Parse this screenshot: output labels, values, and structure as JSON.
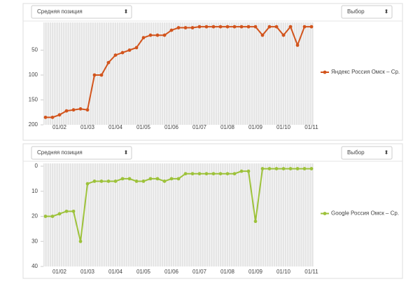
{
  "controls": [
    {
      "select": "Средняя позиция",
      "button": "Выбор"
    },
    {
      "select": "Средняя позиция",
      "button": "Выбор"
    }
  ],
  "chart_data": [
    {
      "type": "line",
      "reversed": true,
      "ylim": [
        0,
        200
      ],
      "yticks": [
        50,
        100,
        150,
        200
      ],
      "categories": [
        null,
        null,
        "01/02",
        null,
        null,
        null,
        "01/03",
        null,
        null,
        null,
        "01/04",
        null,
        null,
        null,
        "01/05",
        null,
        null,
        null,
        "01/06",
        null,
        null,
        null,
        "01/07",
        null,
        null,
        null,
        "01/08",
        null,
        null,
        null,
        "01/09",
        null,
        null,
        null,
        "01/10",
        null,
        null,
        null,
        "01/11"
      ],
      "series": [
        {
          "name": "Яндекс Россия Омск – Ср.",
          "color": "#d2541c",
          "values": [
            185,
            185,
            180,
            172,
            170,
            168,
            170,
            100,
            100,
            75,
            60,
            55,
            50,
            45,
            25,
            20,
            20,
            20,
            10,
            5,
            5,
            5,
            3,
            3,
            3,
            3,
            3,
            3,
            3,
            3,
            3,
            20,
            3,
            3,
            20,
            3,
            40,
            3,
            3
          ]
        }
      ]
    },
    {
      "type": "line",
      "reversed": true,
      "ylim": [
        0,
        40
      ],
      "yticks": [
        0,
        10,
        20,
        30,
        40
      ],
      "categories": [
        null,
        null,
        "01/02",
        null,
        null,
        null,
        "01/03",
        null,
        null,
        null,
        "01/04",
        null,
        null,
        null,
        "01/05",
        null,
        null,
        null,
        "01/06",
        null,
        null,
        null,
        "01/07",
        null,
        null,
        null,
        "01/08",
        null,
        null,
        null,
        "01/09",
        null,
        null,
        null,
        "01/10",
        null,
        null,
        null,
        "01/11"
      ],
      "series": [
        {
          "name": "Google Россия Омск – Ср.",
          "color": "#9dc23a",
          "values": [
            20,
            20,
            19,
            18,
            18,
            30,
            7,
            6,
            6,
            6,
            6,
            5,
            5,
            6,
            6,
            5,
            5,
            6,
            5,
            5,
            3,
            3,
            3,
            3,
            3,
            3,
            3,
            3,
            2,
            2,
            22,
            1,
            1,
            1,
            1,
            1,
            1,
            1,
            1
          ]
        }
      ]
    }
  ]
}
